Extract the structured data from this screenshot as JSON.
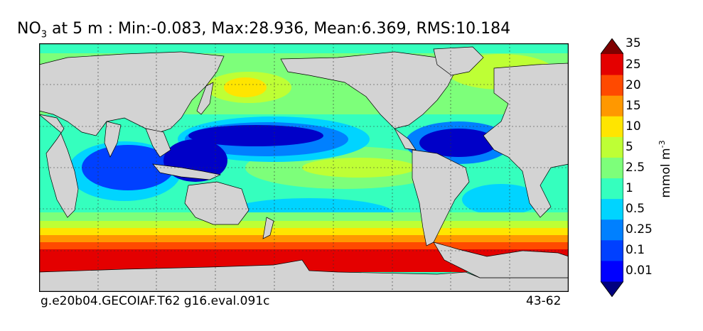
{
  "title": {
    "prefix": "NO",
    "subscript": "3",
    "text": " at 5 m : Min:-0.083, Max:28.936, Mean:6.369, RMS:10.184"
  },
  "footer": {
    "left": "g.e20b04.GECOIAF.T62 g16.eval.091c",
    "right": "43-62"
  },
  "colorbar": {
    "label": "mmol m",
    "label_exp": "-3",
    "levels": [
      "0.01",
      "0.1",
      "0.25",
      "0.5",
      "1",
      "2.5",
      "5",
      "10",
      "15",
      "20",
      "25",
      "35"
    ],
    "colors": [
      "#00007f",
      "#0000ff",
      "#0040ff",
      "#0080ff",
      "#00d4ff",
      "#35ffbe",
      "#7dff7a",
      "#beff35",
      "#ffe500",
      "#ff9800",
      "#ff4a00",
      "#e40000",
      "#7f0000"
    ]
  },
  "map_colors": {
    "land": "#d3d3d3",
    "deep_blue": "#0000c8",
    "blue": "#0040ff",
    "mid_blue": "#0080ff",
    "cyan": "#00d4ff",
    "aqua": "#35ffbe",
    "green": "#7dff7a",
    "yellow_green": "#beff35",
    "yellow": "#ffe500",
    "orange": "#ff9800",
    "red_orange": "#ff4a00",
    "red": "#e40000"
  }
}
